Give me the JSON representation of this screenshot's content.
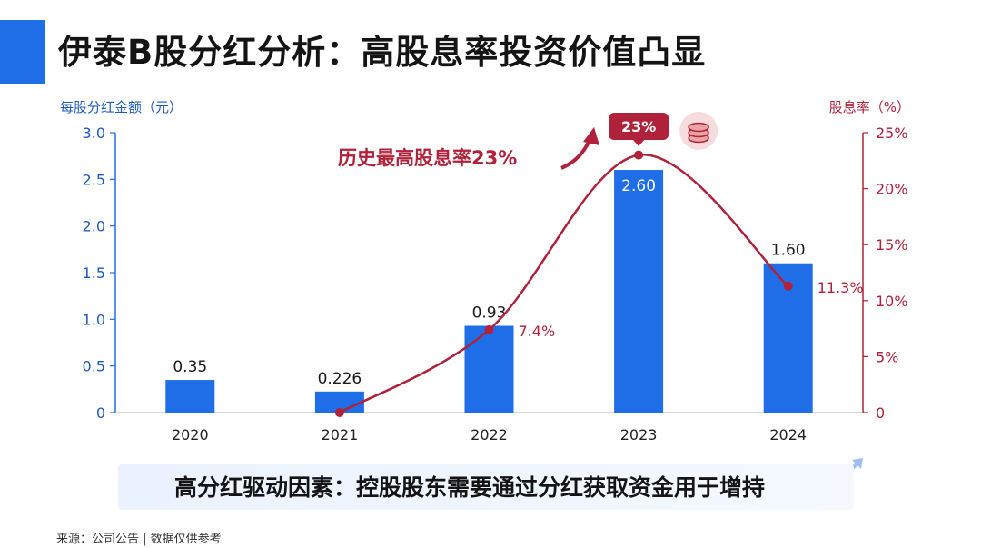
{
  "title": "伊泰B股分红分析：高股息率投资价值凸显",
  "banner": "高分红驱动因素：控股股东需要通过分红获取资金用于增持",
  "source": "来源：公司公告 | 数据仅供参考",
  "colors": {
    "accent_blue": "#1f6ee8",
    "bar_blue": "#1f6ee8",
    "accent_red": "#b0213a",
    "banner_bg": "#eaf2fd"
  },
  "icons": [
    "coin-stack-icon",
    "database-icon",
    "rising-chart-icon",
    "curved-arrow-icon"
  ],
  "chart_data": {
    "type": "bar",
    "title": "",
    "categories": [
      "2020",
      "2021",
      "2022",
      "2023",
      "2024"
    ],
    "ylabel": "每股分红金额（元）",
    "y2label": "股息率（%）",
    "ylim": [
      0,
      3.0
    ],
    "y2lim": [
      0,
      25
    ],
    "yticks": [
      "0",
      "0.5",
      "1.0",
      "1.5",
      "2.0",
      "2.5",
      "3.0"
    ],
    "y2ticks": [
      "0",
      "5%",
      "10%",
      "15%",
      "20%",
      "25%"
    ],
    "grid": false,
    "series": [
      {
        "values": [
          0.35,
          0.226,
          0.93,
          2.6,
          1.6
        ],
        "labels": [
          "0.35",
          "0.226",
          "0.93",
          "2.60",
          "1.60"
        ]
      },
      {
        "values": [
          null,
          0,
          7.4,
          23,
          11.3
        ],
        "labels": [
          "",
          "",
          "7.4%",
          "23%",
          "11.3%"
        ]
      }
    ],
    "annotations": [
      "历史最高股息率23%",
      "23%"
    ]
  }
}
